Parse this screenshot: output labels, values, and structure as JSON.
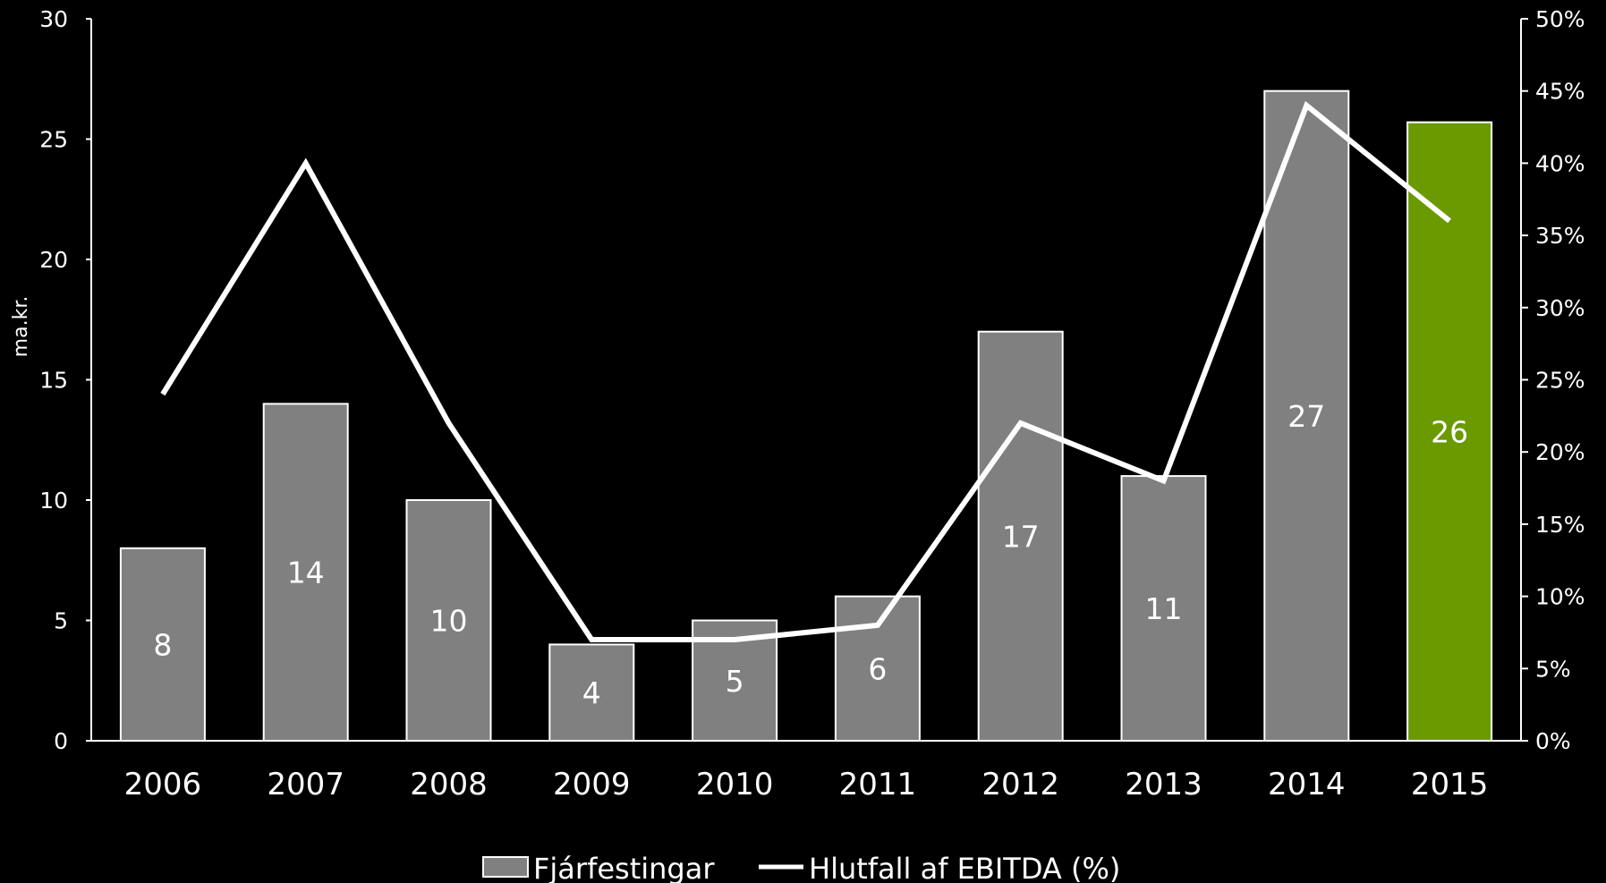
{
  "chart_data": {
    "type": "bar",
    "categories": [
      "2006",
      "2007",
      "2008",
      "2009",
      "2010",
      "2011",
      "2012",
      "2013",
      "2014",
      "2015"
    ],
    "series": [
      {
        "name": "Fjárfestingar",
        "type": "bar",
        "axis": "left",
        "values": [
          8,
          14,
          10,
          4,
          5,
          6,
          17,
          11,
          27,
          25.7
        ],
        "labels": [
          "8",
          "14",
          "10",
          "4",
          "5",
          "6",
          "17",
          "11",
          "27",
          "26"
        ],
        "color": "#808080",
        "highlight": {
          "category": "2015",
          "color": "#6A9A00"
        }
      },
      {
        "name": "Hlutfall af EBITDA (%)",
        "type": "line",
        "axis": "right",
        "values": [
          24,
          40,
          22,
          7,
          7,
          8,
          22,
          18,
          44,
          36
        ],
        "color": "#ffffff"
      }
    ],
    "y_left": {
      "label": "ma.kr.",
      "range": [
        0,
        30
      ],
      "ticks": [
        "0",
        "5",
        "10",
        "15",
        "20",
        "25",
        "30"
      ]
    },
    "y_right": {
      "label": "",
      "range": [
        0,
        50
      ],
      "ticks": [
        "0%",
        "5%",
        "10%",
        "15%",
        "20%",
        "25%",
        "30%",
        "35%",
        "40%",
        "45%",
        "50%"
      ]
    },
    "grid": false,
    "legend": {
      "position": "bottom",
      "items": [
        "Fjárfestingar",
        "Hlutfall af EBITDA (%)"
      ]
    }
  }
}
